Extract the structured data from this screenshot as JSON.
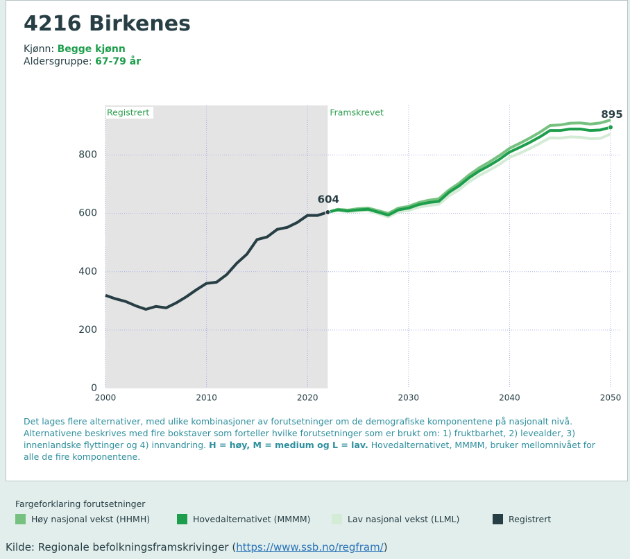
{
  "header": {
    "title": "4216 Birkenes",
    "gender_label": "Kjønn:",
    "gender": "Begge kjønn",
    "age_label": "Aldersgruppe:",
    "age": "67-79 år"
  },
  "chart_data": {
    "type": "line",
    "region_labels": [
      "Registrert",
      "Framskrevet"
    ],
    "xlim": [
      2000,
      2050
    ],
    "xticks": [
      2000,
      2010,
      2020,
      2030,
      2040,
      2050
    ],
    "ylim": [
      0,
      970
    ],
    "yticks": [
      0,
      200,
      400,
      600,
      800
    ],
    "grid": true,
    "series": [
      {
        "name": "Lav nasjonal vekst (LLML)",
        "color": "#d4ebd5",
        "x": [
          2022,
          2023,
          2024,
          2025,
          2026,
          2027,
          2028,
          2029,
          2030,
          2031,
          2032,
          2033,
          2034,
          2035,
          2036,
          2037,
          2038,
          2039,
          2040,
          2041,
          2042,
          2043,
          2044,
          2045,
          2046,
          2047,
          2048,
          2049,
          2050
        ],
        "values": [
          604,
          610,
          605,
          608,
          609,
          599,
          588,
          605,
          610,
          621,
          627,
          631,
          660,
          681,
          708,
          730,
          748,
          768,
          792,
          806,
          822,
          840,
          859,
          858,
          862,
          861,
          856,
          857,
          872
        ]
      },
      {
        "name": "Høy nasjonal vekst (HHMH)",
        "color": "#76c17f",
        "x": [
          2022,
          2023,
          2024,
          2025,
          2026,
          2027,
          2028,
          2029,
          2030,
          2031,
          2032,
          2033,
          2034,
          2035,
          2036,
          2037,
          2038,
          2039,
          2040,
          2041,
          2042,
          2043,
          2044,
          2045,
          2046,
          2047,
          2048,
          2049,
          2050
        ],
        "values": [
          604,
          614,
          611,
          616,
          618,
          609,
          600,
          618,
          624,
          637,
          645,
          650,
          680,
          703,
          732,
          756,
          776,
          798,
          823,
          840,
          858,
          878,
          901,
          903,
          909,
          910,
          906,
          910,
          920
        ]
      },
      {
        "name": "Hovedalternativet (MMMM)",
        "color": "#1d9e4c",
        "x": [
          2022,
          2023,
          2024,
          2025,
          2026,
          2027,
          2028,
          2029,
          2030,
          2031,
          2032,
          2033,
          2034,
          2035,
          2036,
          2037,
          2038,
          2039,
          2040,
          2041,
          2042,
          2043,
          2044,
          2045,
          2046,
          2047,
          2048,
          2049,
          2050
        ],
        "values": [
          604,
          612,
          608,
          612,
          614,
          604,
          594,
          612,
          618,
          630,
          637,
          641,
          672,
          694,
          722,
          745,
          764,
          785,
          810,
          826,
          843,
          862,
          884,
          884,
          889,
          889,
          884,
          886,
          895
        ]
      },
      {
        "name": "Registrert",
        "color": "#263e44",
        "x": [
          2000,
          2001,
          2002,
          2003,
          2004,
          2005,
          2006,
          2007,
          2008,
          2009,
          2010,
          2011,
          2012,
          2013,
          2014,
          2015,
          2016,
          2017,
          2018,
          2019,
          2020,
          2021,
          2022
        ],
        "values": [
          319,
          307,
          298,
          283,
          271,
          281,
          276,
          293,
          314,
          338,
          360,
          364,
          390,
          429,
          460,
          510,
          519,
          545,
          552,
          569,
          593,
          593,
          604
        ]
      }
    ]
  },
  "note": {
    "before": "Det lages flere alternativer, med ulike kombinasjoner av forutsetninger om de demografiske komponentene på nasjonalt nivå. Alternativene beskrives med fire bokstaver som forteller hvilke forutsetninger som er brukt om: 1) fruktbarhet, 2) levealder, 3) innenlandske flyttinger og 4) innvandring.",
    "bold": "H = høy, M = medium og L = lav.",
    "after": "Hovedalternativet, MMMM, bruker mellomnivået for alle de fire komponentene."
  },
  "legend_title": "Fargeforklaring forutsetninger",
  "source": {
    "text": "Kilde: Regionale befolkningsframskrivinger (",
    "link": "https://www.ssb.no/regfram/",
    "end": ")"
  }
}
